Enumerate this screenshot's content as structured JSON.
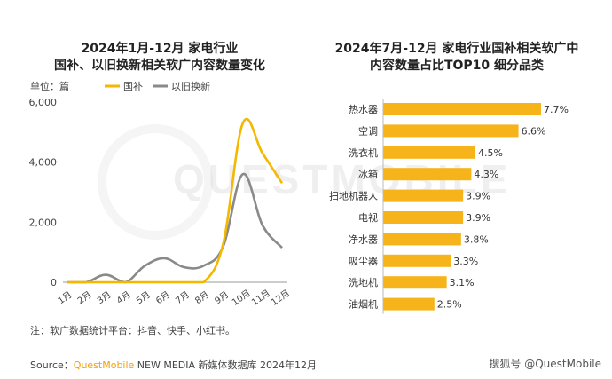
{
  "left_title_line1": "2024年1月-12月 家电行业",
  "left_title_line2": "国补、以旧换新相关软广内容数量变化",
  "right_title_line1": "2024年7月-12月 家电行业国补相关软广中",
  "right_title_line2": "内容数量占比TOP10 细分品类",
  "unit_label": "单位：篇",
  "watermark": "QUESTMOBILE",
  "note": "注：软广数据统计平台：抖音、快手、小红书。",
  "source_prefix": "Source：",
  "source_brand": "QuestMobile",
  "source_rest": " NEW MEDIA 新媒体数据库 2024年12月",
  "credit": "搜狐号 @QuestMobile",
  "colors": {
    "guobu": "#f5b800",
    "yijiu": "#8a8a8a",
    "bar": "#f6b41a",
    "axis": "#999999"
  },
  "chart_data": [
    {
      "type": "line",
      "categories": [
        "1月",
        "2月",
        "3月",
        "4月",
        "5月",
        "6月",
        "7月",
        "8月",
        "9月",
        "10月",
        "11月",
        "12月"
      ],
      "ylim": [
        0,
        6000
      ],
      "yticks": [
        0,
        2000,
        4000,
        6000
      ],
      "ytick_labels": [
        "0",
        "2,000",
        "4,000",
        "6,000"
      ],
      "series": [
        {
          "name": "国补",
          "color": "#f5b800",
          "values": [
            0,
            0,
            0,
            0,
            0,
            0,
            0,
            0,
            1300,
            5300,
            4300,
            3300
          ]
        },
        {
          "name": "以旧换新",
          "color": "#8a8a8a",
          "values": [
            0,
            0,
            250,
            0,
            550,
            800,
            500,
            550,
            1200,
            3600,
            1900,
            1150
          ]
        }
      ]
    },
    {
      "type": "bar",
      "orientation": "horizontal",
      "categories": [
        "热水器",
        "空调",
        "洗衣机",
        "冰箱",
        "扫地机器人",
        "电视",
        "净水器",
        "吸尘器",
        "洗地机",
        "油烟机"
      ],
      "values": [
        7.7,
        6.6,
        4.5,
        4.3,
        3.9,
        3.9,
        3.8,
        3.3,
        3.1,
        2.5
      ],
      "value_labels": [
        "7.7%",
        "6.6%",
        "4.5%",
        "4.3%",
        "3.9%",
        "3.9%",
        "3.8%",
        "3.3%",
        "3.1%",
        "2.5%"
      ]
    }
  ]
}
